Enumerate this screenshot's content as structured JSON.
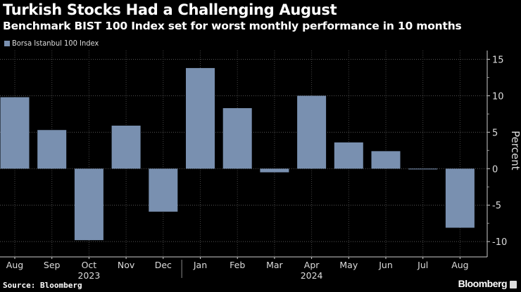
{
  "header": {
    "title": "Turkish Stocks Had a Challenging August",
    "subtitle": "Benchmark BIST 100 Index set for worst monthly performance in 10 months"
  },
  "footer": {
    "source": "Source: Bloomberg",
    "brand": "Bloomberg"
  },
  "chart_data": {
    "type": "bar",
    "title": "Turkish Stocks Had a Challenging August",
    "subtitle": "Benchmark BIST 100 Index set for worst monthly performance in 10 months",
    "categories": [
      "Aug",
      "Sep",
      "Oct",
      "Nov",
      "Dec",
      "Jan",
      "Feb",
      "Mar",
      "Apr",
      "May",
      "Jun",
      "Jul",
      "Aug"
    ],
    "year_labels": [
      {
        "label": "2023",
        "month_index": 2
      },
      {
        "label": "2024",
        "month_index": 8
      }
    ],
    "series": [
      {
        "name": "Borsa Istanbul 100 Index",
        "color": "#7990b0",
        "values": [
          9.8,
          5.3,
          -9.8,
          5.9,
          -5.9,
          13.8,
          8.3,
          -0.5,
          10.0,
          3.6,
          2.4,
          -0.1,
          -8.1
        ]
      }
    ],
    "ylabel": "Percent",
    "yticks": [
      15,
      10,
      5,
      0,
      -5,
      -10
    ],
    "ylim": [
      -12.1,
      16.2
    ],
    "y_axis_side": "right",
    "grid": true,
    "legend": "top-left",
    "background": "#000000"
  }
}
